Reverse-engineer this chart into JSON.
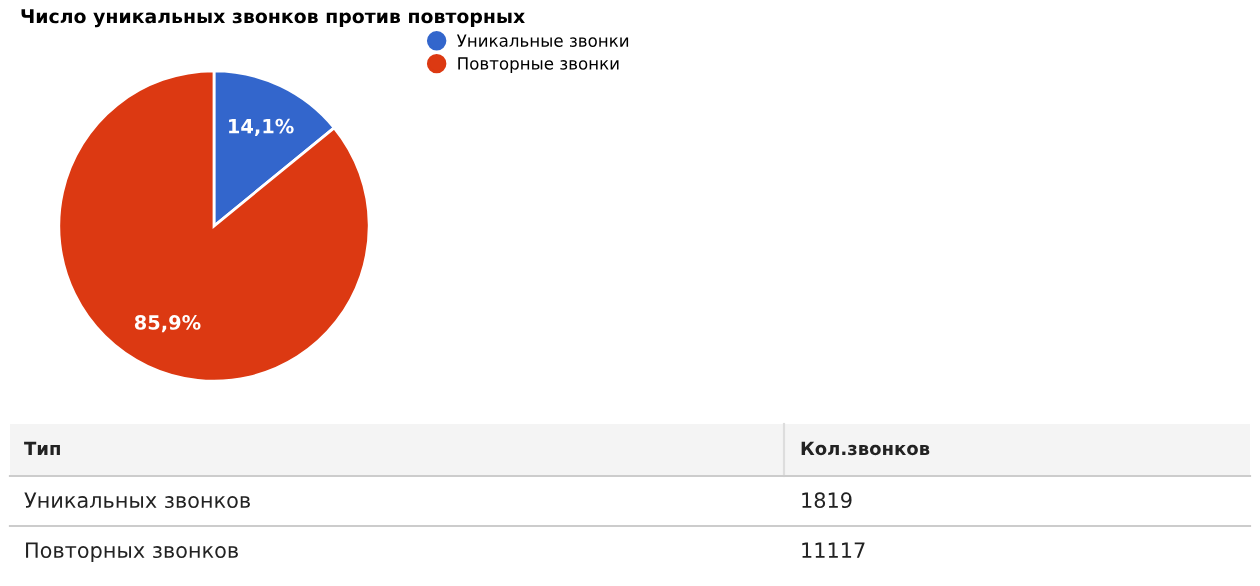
{
  "chart_data": {
    "type": "pie",
    "title": "Число уникальных звонков против повторных",
    "categories": [
      "Уникальные звонки",
      "Повторные звонки"
    ],
    "values": [
      14.1,
      85.9
    ],
    "colors": [
      "#3366cc",
      "#dc3912"
    ],
    "value_labels": [
      "14,1%",
      "85,9%"
    ],
    "legend": "top right",
    "annotations": [
      "Тип",
      "Кол.звонков",
      "Уникальных звонков",
      "1819",
      "Повторных звонков",
      "11117"
    ]
  }
}
